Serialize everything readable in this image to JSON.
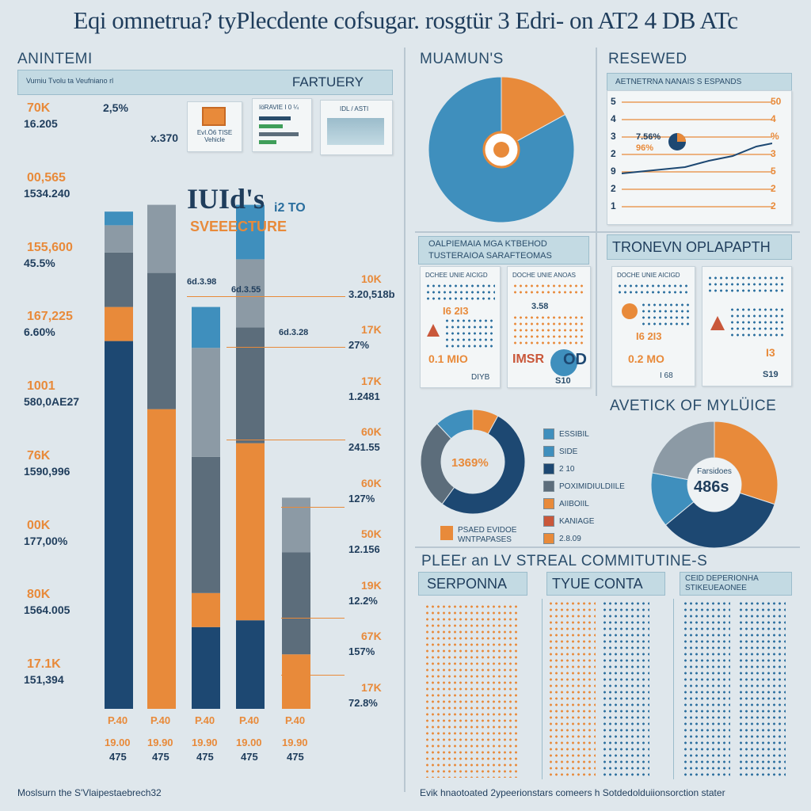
{
  "title": "Eqi omnetrua? tyPlecdente cofsugar. rosgtür 3 Edri- on AT2 4 DB ATc",
  "left": {
    "heading": "ANINTEMI",
    "banner_small": "Vurniu Tvolu ta Veufniano rl",
    "banner_title": "FARTUERY",
    "top_value": "2,5%",
    "bar2_value": "x.370",
    "bar3_value": "6d.3.98",
    "bar4_value": "6d.3.55",
    "bar5_value": "6d.3.28",
    "overlay_big": "IUId's",
    "overlay_small": "i2 TO",
    "overlay_sub": "SVEEECTURE",
    "small_card_1": "EvI.Ö6 TISE Vehicle",
    "small_card_2": "IöRAVIE I 0 ¼",
    "small_card_3": "IDL / ASTI",
    "left_labels": [
      {
        "a": "70K",
        "b": "16.205"
      },
      {
        "a": "00,565",
        "b": "1534.240"
      },
      {
        "a": "155,600",
        "b": "45.5%"
      },
      {
        "a": "167,225",
        "b": "6.60%"
      },
      {
        "a": "1001",
        "b": "580,0AE27"
      },
      {
        "a": "76K",
        "b": "1590,996"
      },
      {
        "a": "00K",
        "b": "177,00%"
      },
      {
        "a": "80K",
        "b": "1564.005"
      },
      {
        "a": "17.1K",
        "b": "151,394"
      }
    ],
    "right_labels": [
      {
        "a": "10K",
        "b": "3.20,518b"
      },
      {
        "a": "17K",
        "b": "27%"
      },
      {
        "a": "17K",
        "b": "1.2481"
      },
      {
        "a": "60K",
        "b": "241.55"
      },
      {
        "a": "60K",
        "b": "127%"
      },
      {
        "a": "50K",
        "b": "12.156"
      },
      {
        "a": "19K",
        "b": "12.2%"
      },
      {
        "a": "67K",
        "b": "157%"
      },
      {
        "a": "17K",
        "b": "72.8%"
      }
    ],
    "footer": "Moslsurn the S'Vlaipestaebrech32"
  },
  "chart_data": {
    "type": "bar",
    "title": "FARTUERY",
    "categories": [
      "P.40",
      "P.40",
      "P.40",
      "P.40",
      "P.40"
    ],
    "x_sub": [
      "19.00",
      "19.90",
      "19.90",
      "19.00",
      "19.90"
    ],
    "x_totals": [
      "475",
      "475",
      "475",
      "475",
      "475"
    ],
    "series": [
      {
        "name": "navy",
        "color": "#1d4872",
        "values": [
          54,
          0,
          12,
          13,
          0
        ]
      },
      {
        "name": "orange",
        "color": "#e88a3a",
        "values": [
          5,
          44,
          5,
          26,
          8
        ]
      },
      {
        "name": "slate",
        "color": "#5c6d7b",
        "values": [
          8,
          20,
          20,
          17,
          15
        ]
      },
      {
        "name": "grey",
        "color": "#8c9aa5",
        "values": [
          4,
          10,
          16,
          10,
          8
        ]
      },
      {
        "name": "blue",
        "color": "#3f8fbd",
        "values": [
          2,
          0,
          6,
          8,
          0
        ]
      }
    ]
  },
  "pie1": {
    "heading": "MUAMUN'S",
    "slices": [
      {
        "value": 17,
        "color": "#e88a3a"
      },
      {
        "value": 83,
        "color": "#3f8fbd"
      }
    ]
  },
  "reseweb": {
    "heading": "RESEWED",
    "banner": "AETNETRNA NANAIS S ESPANDS",
    "pct1": "7.56%",
    "pct2": "96%",
    "y_left": [
      "5",
      "4",
      "3",
      "2",
      "9",
      "2",
      "1"
    ],
    "y_right": [
      "50",
      "4",
      "%",
      "3",
      "5",
      "2",
      "2"
    ]
  },
  "mid_card": {
    "banner1": "OALPIEMAIA MGA KTBEHOD",
    "banner2": "TUSTERAIOA SARAFTEOMAS",
    "c1_title": "DCHEE UNIE AICIGD",
    "c1_big": "I6 2I3",
    "c1_big2": "0.1 MIO",
    "c1_small": "DIYB",
    "c2_title": "DOCHE UNIE ANOAS",
    "c2_val": "3.58",
    "c2_badge": "IMSR",
    "c2_big": "OD",
    "c2_small": "S10"
  },
  "tronevn": {
    "heading": "TRONEVN OPLAPAPTH",
    "c1_title": "DOCHE UNIE AICIGD",
    "c1_big": "I6 2I3",
    "c1_big2": "0.2 MO",
    "c1_small": "I 68",
    "c2_big": "I3",
    "c2_small": "S19"
  },
  "donut": {
    "center": "1369%",
    "legend": [
      "ESSIBIL",
      "SIDE",
      "2 10",
      "POXIMIDIULDIILE",
      "AIIBOIIL",
      "KANIAGE",
      "2.8.09"
    ],
    "legend_colors": [
      "#3f8fbd",
      "#3f8fbd",
      "#1d4872",
      "#5c6d7b",
      "#e88a3a",
      "#c9573a",
      "#e88a3a"
    ],
    "slices": [
      {
        "value": 8,
        "color": "#e88a3a"
      },
      {
        "value": 52,
        "color": "#1d4872"
      },
      {
        "value": 28,
        "color": "#5c6d7b"
      },
      {
        "value": 12,
        "color": "#3f8fbd"
      }
    ],
    "note1": "PSAED EVIDOE",
    "note2": "WNTPAPASES"
  },
  "pie2": {
    "heading": "AVETICK OF MYLÜICE",
    "label": "Farsidoes",
    "center": "486s",
    "slices": [
      {
        "value": 30,
        "color": "#e88a3a"
      },
      {
        "value": 34,
        "color": "#1d4872"
      },
      {
        "value": 14,
        "color": "#3f8fbd"
      },
      {
        "value": 22,
        "color": "#8c9aa5"
      }
    ]
  },
  "bottom": {
    "heading": "PLEEr an LV STREAL COMMITUTINE-S",
    "b1": "SERPONNA",
    "b2": "TYUE CONTA",
    "b3": "CEID DEPERIONHA STIKEUEAONEE",
    "footer": "Evik hnaotoated 2ypeerionstars comeers h Sotdedolduiionsorction stater"
  }
}
